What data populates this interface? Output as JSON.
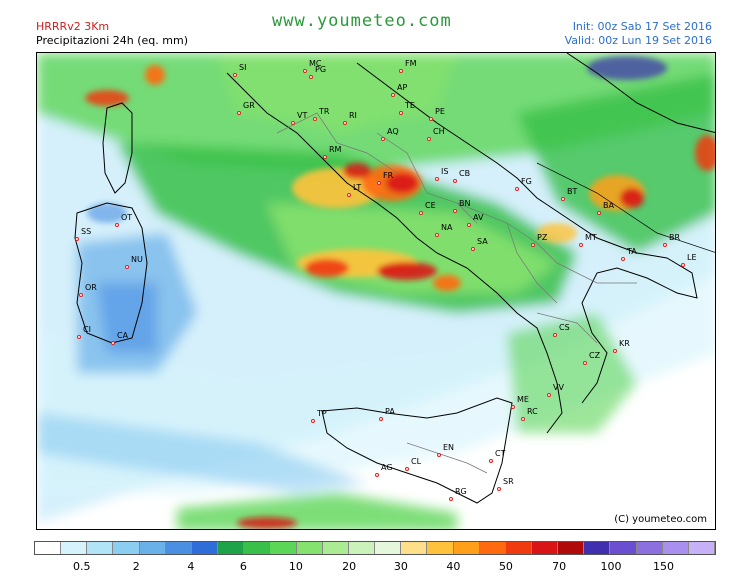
{
  "header": {
    "model": "HRRRv2 3Km",
    "product": "Precipitazioni 24h (eq. mm)",
    "site": "www.youmeteo.com",
    "init": "Init: 00z Sab  17 Set 2016",
    "valid": "Valid: 00z Lun  19 Set 2016"
  },
  "copyright": "(C) youmeteo.com",
  "legend": {
    "colors": [
      "#ffffff",
      "#d6f3fb",
      "#b2e4f7",
      "#8ccdf2",
      "#6ab1ea",
      "#4a8fe2",
      "#2f6ed8",
      "#1ea34a",
      "#38c048",
      "#5cd656",
      "#86e26e",
      "#aaeb94",
      "#ccf2bb",
      "#e6f8dc",
      "#ffe08a",
      "#ffc23a",
      "#ff9f1a",
      "#ff6a10",
      "#f03a10",
      "#d81414",
      "#b00a0a",
      "#4030b0",
      "#6a50d0",
      "#8c70e0",
      "#aa90ee",
      "#c6b0f6"
    ],
    "ticks": [
      {
        "label": "0.5",
        "pos": 0.07
      },
      {
        "label": "2",
        "pos": 0.15
      },
      {
        "label": "4",
        "pos": 0.23
      },
      {
        "label": "6",
        "pos": 0.307
      },
      {
        "label": "10",
        "pos": 0.384
      },
      {
        "label": "20",
        "pos": 0.462
      },
      {
        "label": "30",
        "pos": 0.538
      },
      {
        "label": "40",
        "pos": 0.615
      },
      {
        "label": "50",
        "pos": 0.692
      },
      {
        "label": "70",
        "pos": 0.77
      },
      {
        "label": "100",
        "pos": 0.846
      },
      {
        "label": "150",
        "pos": 0.923
      }
    ]
  },
  "cities": [
    {
      "code": "MC"
    },
    {
      "code": "FM"
    },
    {
      "code": "AP"
    },
    {
      "code": "PG"
    },
    {
      "code": "SI"
    },
    {
      "code": "GR"
    },
    {
      "code": "TE"
    },
    {
      "code": "VT"
    },
    {
      "code": "TR"
    },
    {
      "code": "RI"
    },
    {
      "code": "PE"
    },
    {
      "code": "AQ"
    },
    {
      "code": "CH"
    },
    {
      "code": "RM"
    },
    {
      "code": "FR"
    },
    {
      "code": "LT"
    },
    {
      "code": "IS"
    },
    {
      "code": "CB"
    },
    {
      "code": "FG"
    },
    {
      "code": "BT"
    },
    {
      "code": "CE"
    },
    {
      "code": "BN"
    },
    {
      "code": "AV"
    },
    {
      "code": "BA"
    },
    {
      "code": "NA"
    },
    {
      "code": "SA"
    },
    {
      "code": "PZ"
    },
    {
      "code": "MT"
    },
    {
      "code": "TA"
    },
    {
      "code": "BR"
    },
    {
      "code": "LE"
    },
    {
      "code": "OT"
    },
    {
      "code": "SS"
    },
    {
      "code": "NU"
    },
    {
      "code": "OR"
    },
    {
      "code": "CI"
    },
    {
      "code": "CA"
    },
    {
      "code": "CS"
    },
    {
      "code": "KR"
    },
    {
      "code": "CZ"
    },
    {
      "code": "VV"
    },
    {
      "code": "ME"
    },
    {
      "code": "RC"
    },
    {
      "code": "TP"
    },
    {
      "code": "PA"
    },
    {
      "code": "EN"
    },
    {
      "code": "CT"
    },
    {
      "code": "CL"
    },
    {
      "code": "AG"
    },
    {
      "code": "SR"
    },
    {
      "code": "RG"
    }
  ]
}
